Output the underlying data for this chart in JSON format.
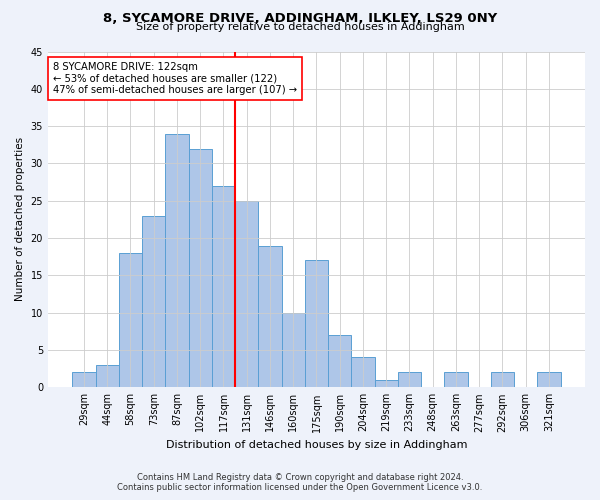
{
  "title1": "8, SYCAMORE DRIVE, ADDINGHAM, ILKLEY, LS29 0NY",
  "title2": "Size of property relative to detached houses in Addingham",
  "xlabel": "Distribution of detached houses by size in Addingham",
  "ylabel": "Number of detached properties",
  "bar_labels": [
    "29sqm",
    "44sqm",
    "58sqm",
    "73sqm",
    "87sqm",
    "102sqm",
    "117sqm",
    "131sqm",
    "146sqm",
    "160sqm",
    "175sqm",
    "190sqm",
    "204sqm",
    "219sqm",
    "233sqm",
    "248sqm",
    "263sqm",
    "277sqm",
    "292sqm",
    "306sqm",
    "321sqm"
  ],
  "bar_values": [
    2,
    3,
    18,
    23,
    34,
    32,
    27,
    25,
    19,
    10,
    17,
    7,
    4,
    1,
    2,
    0,
    2,
    0,
    2,
    0,
    2
  ],
  "bar_color": "#aec6e8",
  "bar_edge_color": "#5a9fd4",
  "vline_x": 6.5,
  "vline_color": "red",
  "annotation_line1": "8 SYCAMORE DRIVE: 122sqm",
  "annotation_line2": "← 53% of detached houses are smaller (122)",
  "annotation_line3": "47% of semi-detached houses are larger (107) →",
  "annotation_box_color": "white",
  "annotation_box_edge": "red",
  "ylim": [
    0,
    45
  ],
  "yticks": [
    0,
    5,
    10,
    15,
    20,
    25,
    30,
    35,
    40,
    45
  ],
  "footnote1": "Contains HM Land Registry data © Crown copyright and database right 2024.",
  "footnote2": "Contains public sector information licensed under the Open Government Licence v3.0.",
  "bg_color": "#eef2fa",
  "plot_bg_color": "white",
  "grid_color": "#cccccc"
}
